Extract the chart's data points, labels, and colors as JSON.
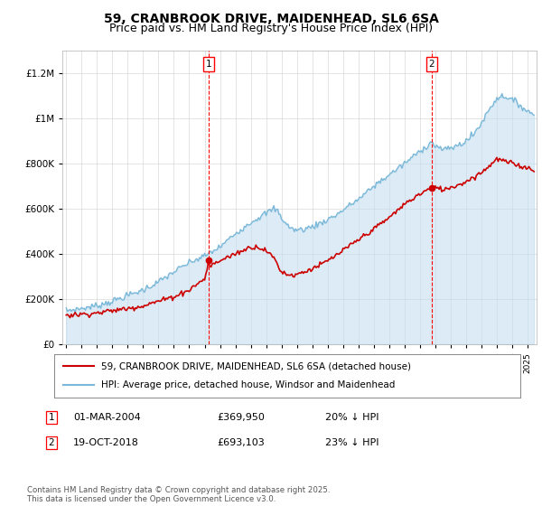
{
  "title": "59, CRANBROOK DRIVE, MAIDENHEAD, SL6 6SA",
  "subtitle": "Price paid vs. HM Land Registry's House Price Index (HPI)",
  "ylim": [
    0,
    1300000
  ],
  "yticks": [
    0,
    200000,
    400000,
    600000,
    800000,
    1000000,
    1200000
  ],
  "hpi_color": "#7ab8d9",
  "hpi_fill_color": "#c5dff0",
  "price_color": "#cc0000",
  "marker1_x": 111,
  "marker1_price": 369950,
  "marker1_date_str": "01-MAR-2004",
  "marker1_pct": "20% ↓ HPI",
  "marker2_x": 285,
  "marker2_price": 693103,
  "marker2_date_str": "19-OCT-2018",
  "marker2_pct": "23% ↓ HPI",
  "legend_label1": "59, CRANBROOK DRIVE, MAIDENHEAD, SL6 6SA (detached house)",
  "legend_label2": "HPI: Average price, detached house, Windsor and Maidenhead",
  "footer": "Contains HM Land Registry data © Crown copyright and database right 2025.\nThis data is licensed under the Open Government Licence v3.0.",
  "title_fontsize": 10,
  "subtitle_fontsize": 9,
  "background_color": "#ffffff",
  "n_months": 366,
  "start_year": 1995,
  "end_year": 2025
}
